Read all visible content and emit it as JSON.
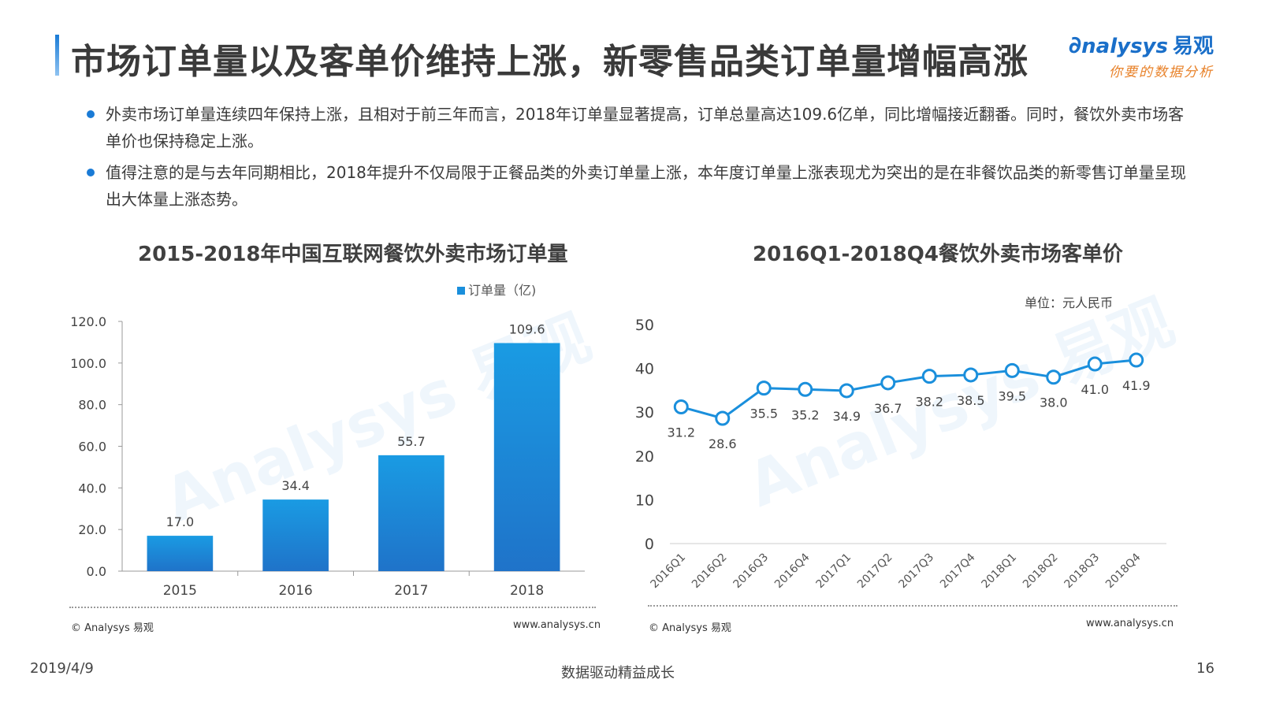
{
  "header": {
    "title": "市场订单量以及客单价维持上涨，新零售品类订单量增幅高涨",
    "brand_name": "nalysys",
    "brand_cn": "易观",
    "brand_slogan": "你要的数据分析"
  },
  "bullets": [
    "外卖市场订单量连续四年保持上涨，且相对于前三年而言，2018年订单量显著提高，订单总量高达109.6亿单，同比增幅接近翻番。同时，餐饮外卖市场客单价也保持稳定上涨。",
    "值得注意的是与去年同期相比，2018年提升不仅局限于正餐品类的外卖订单量上涨，本年度订单量上涨表现尤为突出的是在非餐饮品类的新零售订单量呈现出大体量上涨态势。"
  ],
  "chart_data": [
    {
      "type": "bar",
      "title": "2015-2018年中国互联网餐饮外卖市场订单量",
      "categories": [
        "2015",
        "2016",
        "2017",
        "2018"
      ],
      "series": [
        {
          "name": "订单量（亿)",
          "values": [
            17.0,
            34.4,
            55.7,
            109.6
          ]
        }
      ],
      "ylim": [
        0,
        120
      ],
      "yticks": [
        "0.0",
        "20.0",
        "40.0",
        "60.0",
        "80.0",
        "100.0",
        "120.0"
      ],
      "legend": "top-right",
      "color": "#1a8fdc"
    },
    {
      "type": "line",
      "title": "2016Q1-2018Q4餐饮外卖市场客单价",
      "unit_label": "单位：元人民币",
      "categories": [
        "2016Q1",
        "2016Q2",
        "2016Q3",
        "2016Q4",
        "2017Q1",
        "2017Q2",
        "2017Q3",
        "2017Q4",
        "2018Q1",
        "2018Q2",
        "2018Q3",
        "2018Q4"
      ],
      "series": [
        {
          "values": [
            31.2,
            28.6,
            35.5,
            35.2,
            34.9,
            36.7,
            38.2,
            38.5,
            39.5,
            38.0,
            41.0,
            41.9
          ]
        }
      ],
      "ylim": [
        0,
        50
      ],
      "yticks": [
        "0",
        "10",
        "20",
        "30",
        "40",
        "50"
      ],
      "color": "#1a8fdc"
    }
  ],
  "notes": {
    "left_copyright": "© Analysys 易观",
    "left_site": "www.analysys.cn",
    "right_copyright": "© Analysys 易观",
    "right_site": "www.analysys.cn"
  },
  "footer": {
    "date": "2019/4/9",
    "slogan": "数据驱动精益成长",
    "page": "16"
  }
}
